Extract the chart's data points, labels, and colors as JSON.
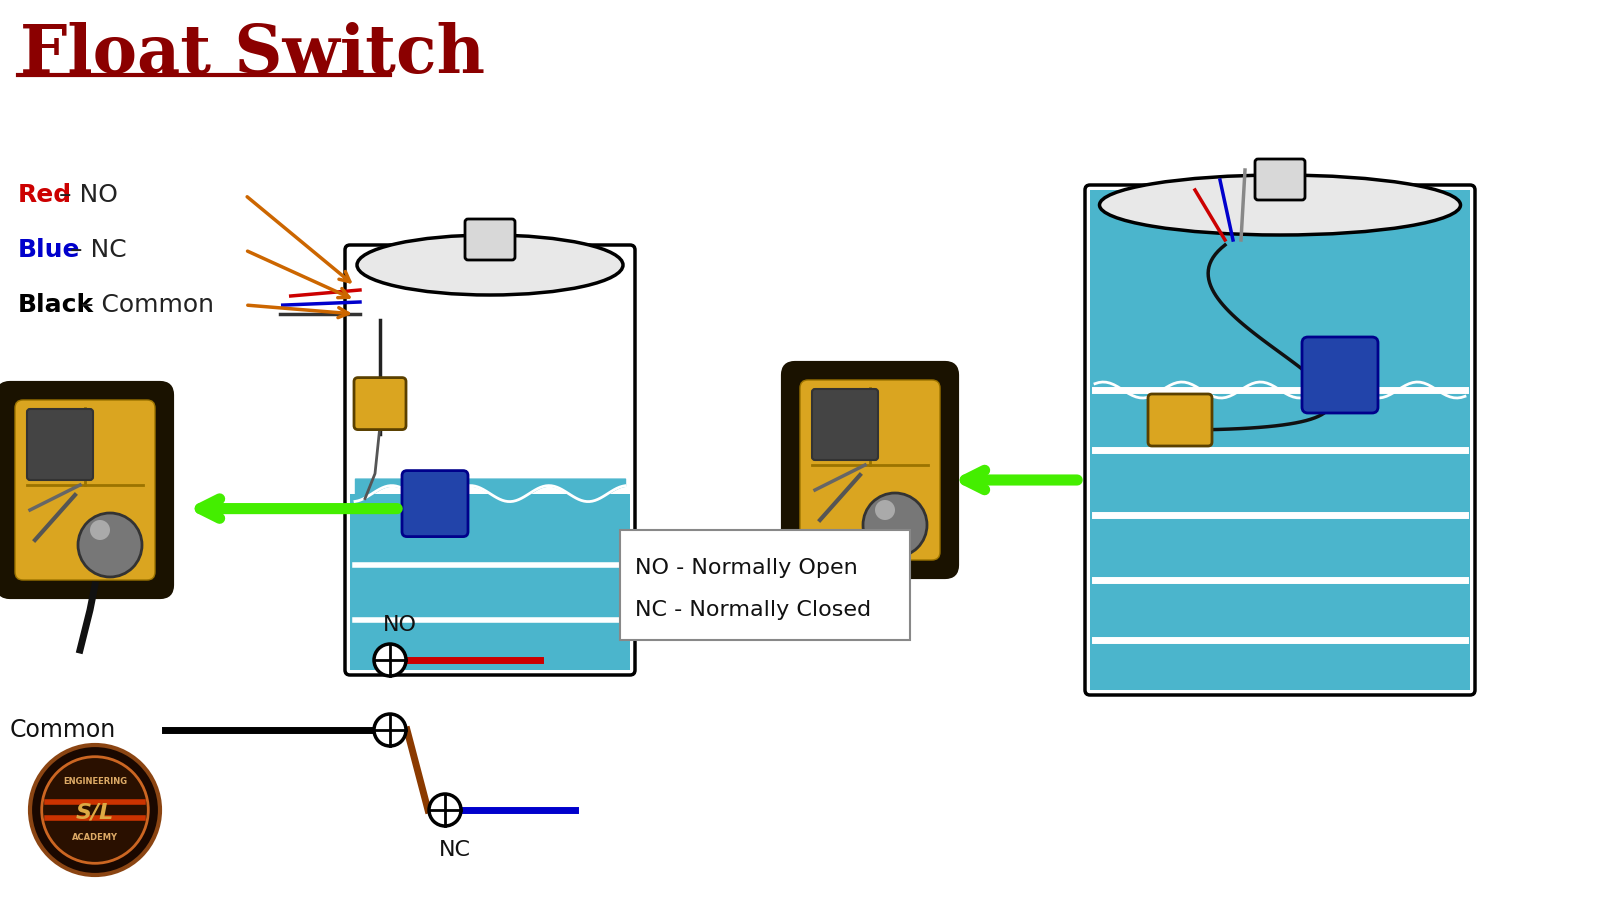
{
  "title": "Float Switch",
  "title_color": "#8B0000",
  "bg_color": "#FFFFFF",
  "label_red": "Red",
  "label_blue": "Blue",
  "label_black": "Black",
  "label_no": "NO",
  "label_nc": "NC",
  "label_common": "Common",
  "label_no_full": "NO - Normally Open",
  "label_nc_full": "NC - Normally Closed",
  "wire_red": "#CC0000",
  "wire_blue": "#0000CC",
  "wire_black": "#000000",
  "wire_brown": "#8B3A00",
  "tank_color": "#4BB5CC",
  "tank_upper_color": "#F0F0F0",
  "tank_outline": "#000000",
  "water_color": "#4BB5CC",
  "stripe_color": "#FFFFFF",
  "float_yellow": "#DAA520",
  "float_blue": "#2244AA",
  "arrow_green": "#44EE00",
  "arrow_orange": "#CC6600",
  "legend_border": "#888888"
}
